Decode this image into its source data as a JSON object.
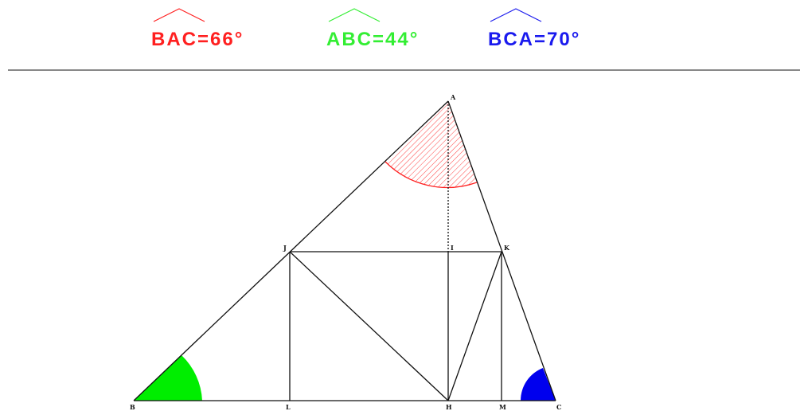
{
  "angles": [
    {
      "name": "BAC",
      "value": "66",
      "unit": "°",
      "color": "#ff2020"
    },
    {
      "name": "ABC",
      "value": "44",
      "unit": "°",
      "color": "#33ee33"
    },
    {
      "name": "BCA",
      "value": "70",
      "unit": "°",
      "color": "#1a1aee"
    }
  ],
  "points": {
    "A": "A",
    "B": "B",
    "C": "C",
    "H": "H",
    "I": "I",
    "J": "J",
    "K": "K",
    "L": "L",
    "M": "M"
  },
  "colors": {
    "divider": "#888888",
    "lines": "#111111",
    "angle_A_fill": "#ff2020",
    "angle_B_fill": "#00ee00",
    "angle_C_fill": "#0000ee"
  }
}
